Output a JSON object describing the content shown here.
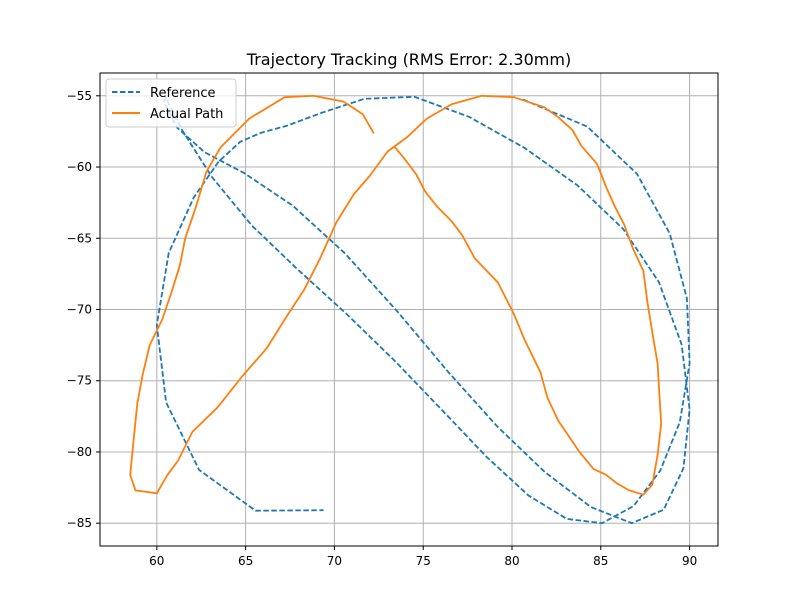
{
  "chart_data": {
    "type": "line",
    "title": "Trajectory Tracking (RMS Error: 2.30mm)",
    "xlabel": "",
    "ylabel": "",
    "xlim": [
      56.8,
      91.6
    ],
    "ylim": [
      -86.6,
      -53.4
    ],
    "x_ticks": [
      60,
      65,
      70,
      75,
      80,
      85,
      90
    ],
    "y_ticks": [
      -85,
      -80,
      -75,
      -70,
      -65,
      -60,
      -55
    ],
    "grid": true,
    "legend_position": "top-left",
    "colors": {
      "reference": "#1f77b4",
      "actual": "#ff7f0e",
      "grid": "#b0b0b0"
    },
    "series": [
      {
        "name": "Reference",
        "style": "dashed",
        "x": [
          80.61,
          84.24,
          87.04,
          88.88,
          89.85,
          90.0,
          89.45,
          88.35,
          86.85,
          85.07,
          83.08,
          80.91,
          78.58,
          76.09,
          73.45,
          70.72,
          67.98,
          65.36,
          63.1,
          61.42,
          60.5,
          60.4,
          61.13,
          62.68,
          64.93,
          67.66,
          70.6,
          73.55,
          76.4,
          79.16,
          81.86,
          84.45,
          86.74,
          88.54,
          89.65,
          90.0,
          89.55,
          88.27,
          86.26,
          83.69,
          80.73,
          77.59,
          74.51,
          71.69,
          69.27,
          67.33,
          65.88,
          64.7,
          63.48,
          62.07,
          60.67,
          60.0,
          60.52,
          62.38,
          65.56,
          69.39
        ],
        "y": [
          -55.26,
          -57.16,
          -60.48,
          -64.66,
          -69.22,
          -73.78,
          -77.9,
          -81.31,
          -83.79,
          -85.0,
          -84.7,
          -83.04,
          -80.36,
          -77.1,
          -73.67,
          -70.36,
          -67.24,
          -64.12,
          -60.7,
          -57.4,
          -55.12,
          -55.4,
          -57.22,
          -58.95,
          -60.43,
          -62.72,
          -66.07,
          -70.15,
          -74.37,
          -78.2,
          -81.42,
          -83.87,
          -85.0,
          -84.05,
          -81.15,
          -77.02,
          -72.45,
          -68.08,
          -64.35,
          -61.29,
          -58.68,
          -56.48,
          -55.07,
          -55.21,
          -56.2,
          -57.1,
          -57.59,
          -58.22,
          -59.62,
          -62.15,
          -66.04,
          -71.08,
          -76.52,
          -81.26,
          -84.12,
          -84.09
        ]
      },
      {
        "name": "Actual Path",
        "style": "solid",
        "x": [
          72.2,
          71.6,
          70.5,
          68.8,
          67.2,
          65.2,
          63.6,
          62.8,
          62.2,
          61.6,
          61.3,
          60.8,
          60.3,
          59.6,
          59.2,
          58.9,
          58.7,
          58.5,
          58.8,
          60.0,
          60.6,
          61.2,
          62.0,
          63.4,
          64.8,
          66.2,
          67.3,
          68.3,
          69.2,
          70.1,
          71.1,
          72.0,
          73.0,
          74.1,
          75.2,
          76.6,
          78.3,
          80.1,
          81.8,
          82.6,
          83.4,
          83.9,
          84.8,
          85.3,
          85.8,
          86.3,
          86.8,
          87.4,
          87.6,
          87.9,
          88.2,
          88.3,
          88.4,
          88.2,
          87.9,
          87.4,
          86.6,
          85.9,
          85.3,
          84.6,
          83.8,
          82.6,
          82.0,
          81.6,
          80.7,
          80.1,
          79.2,
          77.9,
          77.2,
          76.6,
          75.8,
          75.1,
          74.6,
          74.0,
          73.4
        ],
        "y": [
          -57.6,
          -56.3,
          -55.4,
          -55.0,
          -55.1,
          -56.6,
          -58.6,
          -60.3,
          -62.8,
          -65.0,
          -66.9,
          -68.9,
          -70.7,
          -72.5,
          -74.6,
          -76.6,
          -79.1,
          -81.6,
          -82.7,
          -82.9,
          -81.6,
          -80.6,
          -78.6,
          -76.9,
          -74.7,
          -72.7,
          -70.5,
          -68.6,
          -66.4,
          -63.9,
          -61.9,
          -60.6,
          -58.9,
          -57.9,
          -56.6,
          -55.6,
          -55.0,
          -55.1,
          -55.8,
          -56.5,
          -57.4,
          -58.5,
          -59.8,
          -61.4,
          -62.8,
          -64.0,
          -65.7,
          -67.3,
          -69.3,
          -71.6,
          -73.8,
          -76.0,
          -78.0,
          -80.2,
          -82.3,
          -83.0,
          -82.7,
          -82.2,
          -81.6,
          -81.2,
          -80.0,
          -77.8,
          -76.2,
          -74.4,
          -72.1,
          -70.3,
          -68.1,
          -66.4,
          -64.8,
          -63.8,
          -62.8,
          -61.7,
          -60.5,
          -59.5,
          -58.6
        ]
      }
    ]
  }
}
